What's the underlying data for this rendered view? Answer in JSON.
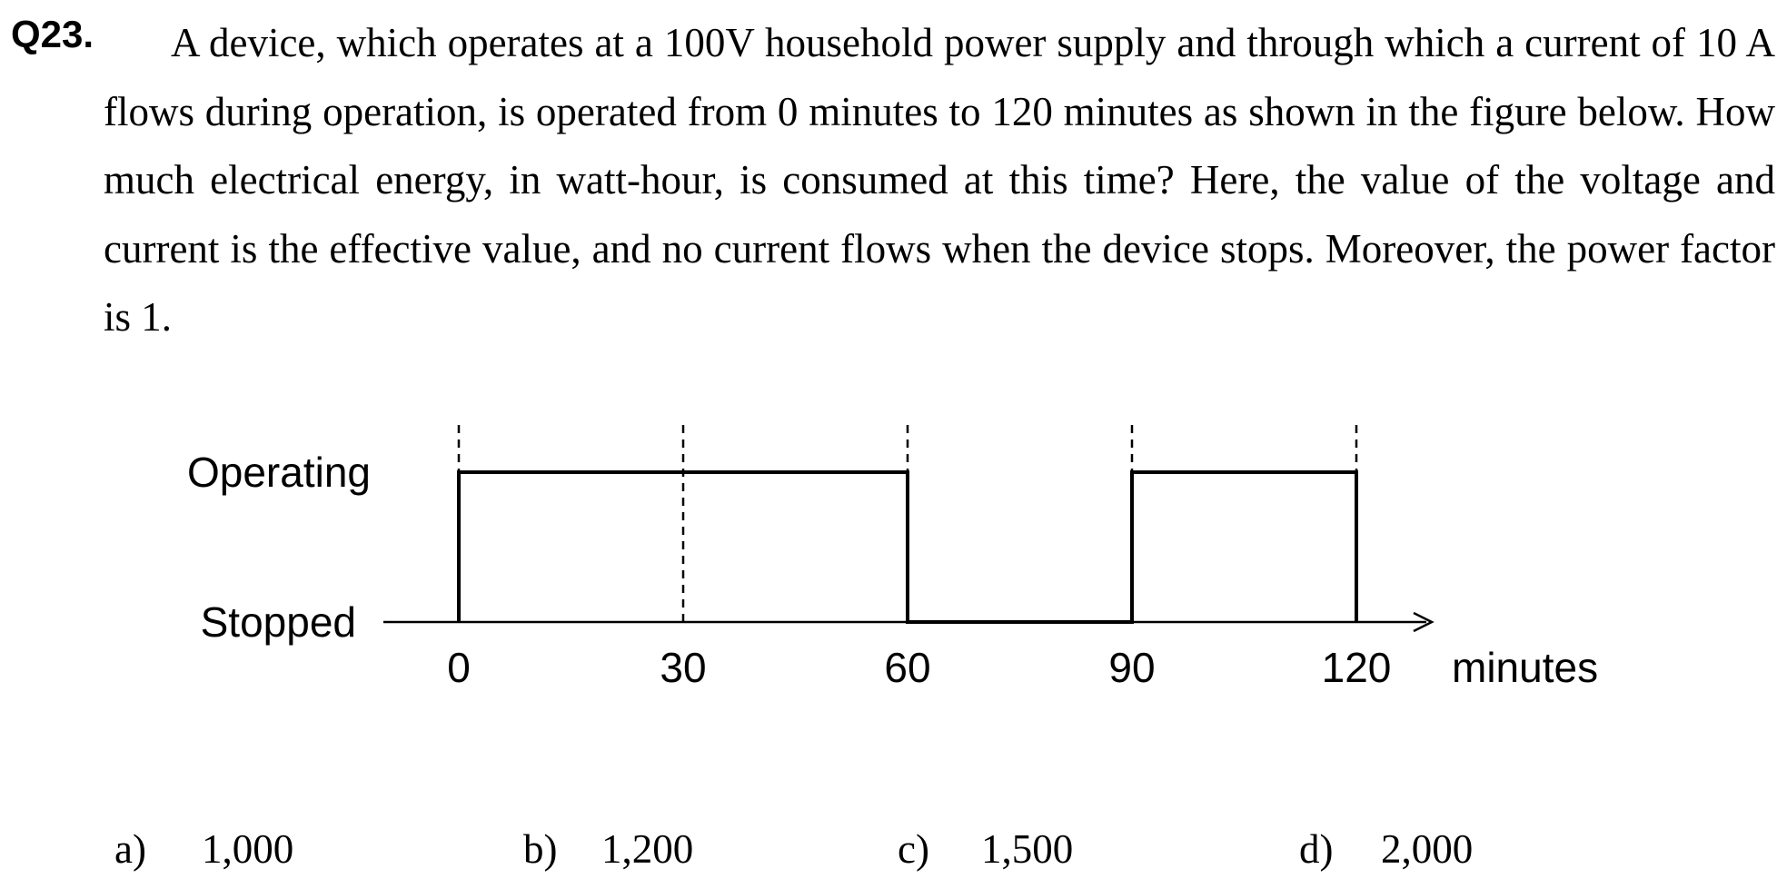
{
  "question": {
    "number": "Q23.",
    "text": "A device, which operates at a 100V household power supply and through which a current of 10 A flows during operation, is operated from 0 minutes to 120 minutes as shown in the figure below.   How much electrical energy, in watt-hour, is consumed at this time?   Here, the value of the voltage and current is the effective value, and no current flows when the device stops.   Moreover, the power factor is 1."
  },
  "chart_data": {
    "type": "line",
    "step": true,
    "x": [
      0,
      60,
      60,
      90,
      90,
      120
    ],
    "y": [
      "Operating",
      "Operating",
      "Stopped",
      "Stopped",
      "Operating",
      "Operating"
    ],
    "states": [
      "Stopped",
      "Operating"
    ],
    "xticks": [
      "0",
      "30",
      "60",
      "90",
      "120"
    ],
    "xlabel": "minutes",
    "xlim": [
      0,
      120
    ],
    "guide_lines_at": [
      0,
      30,
      60,
      90,
      120
    ]
  },
  "options": [
    {
      "letter": "a)",
      "value": "1,000"
    },
    {
      "letter": "b)",
      "value": "1,200"
    },
    {
      "letter": "c)",
      "value": "1,500"
    },
    {
      "letter": "d)",
      "value": "2,000"
    }
  ]
}
